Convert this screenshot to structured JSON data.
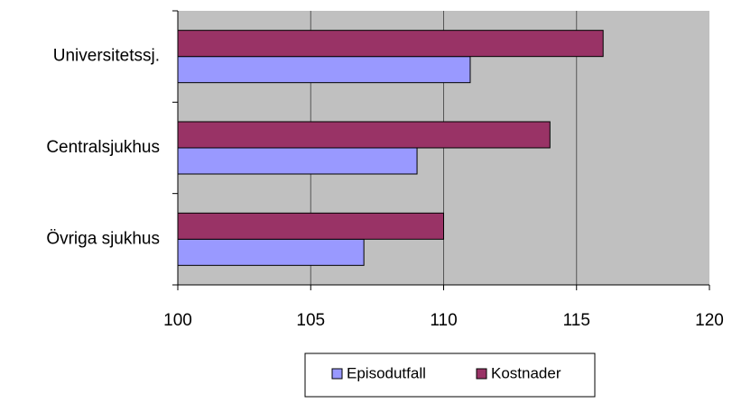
{
  "chart_data": {
    "type": "bar",
    "orientation": "horizontal",
    "categories": [
      "Universitetssj.",
      "Centralsjukhus",
      "Övriga sjukhus"
    ],
    "series": [
      {
        "name": "Episodutfall",
        "color": "#9999ff",
        "values": [
          111,
          109,
          107
        ]
      },
      {
        "name": "Kostnader",
        "color": "#993366",
        "values": [
          116,
          114,
          110
        ]
      }
    ],
    "xlim": [
      100,
      120
    ],
    "xticks": [
      100,
      105,
      110,
      115,
      120
    ],
    "grid": true,
    "plot_background": "#c0c0c0",
    "legend": "bottom"
  }
}
